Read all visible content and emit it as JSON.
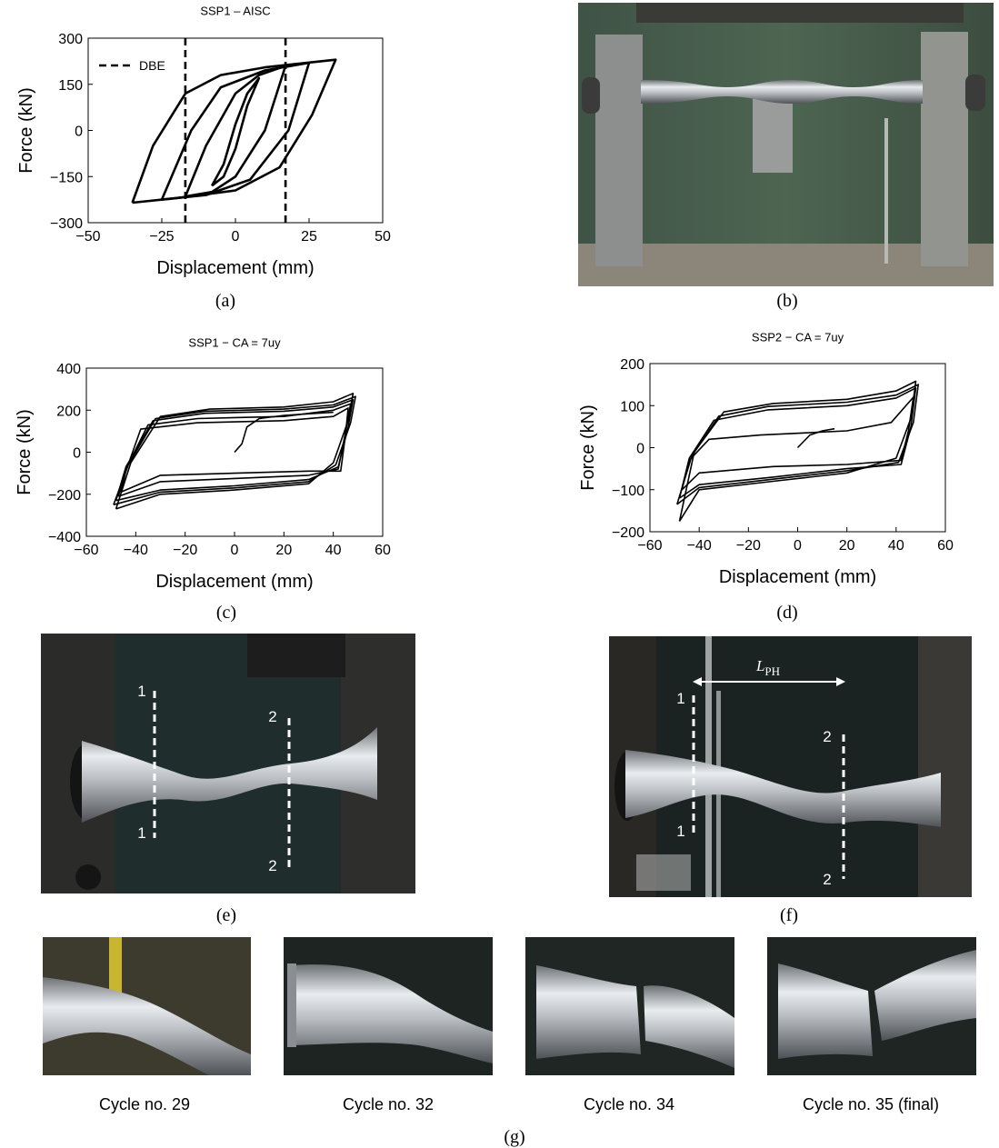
{
  "chart_data": [
    {
      "type": "line",
      "title": "SSP1 – AISC",
      "x_label": "Displacement (mm)",
      "y_label": "Force (kN)",
      "xlim": [
        -50,
        50
      ],
      "xticks": [
        {
          "value": -50,
          "label": "−50"
        },
        {
          "value": -25,
          "label": "−25"
        },
        0,
        25,
        50
      ],
      "ylim": [
        -300,
        300
      ],
      "yticks": [
        {
          "value": -300,
          "label": "−300"
        },
        {
          "value": -150,
          "label": "−150"
        },
        0,
        150,
        300
      ],
      "legend": "upper left",
      "series": [
        {
          "color": "#000000",
          "x": [
            -8,
            -4,
            0,
            4,
            8,
            4,
            0,
            -4,
            -8
          ],
          "values": [
            -180,
            -110,
            20,
            120,
            170,
            80,
            -60,
            -150,
            -180
          ]
        },
        {
          "color": "#000000",
          "x": [
            -17,
            -10,
            0,
            8,
            17,
            10,
            0,
            -8,
            -17
          ],
          "values": [
            -215,
            -50,
            120,
            180,
            210,
            0,
            -150,
            -200,
            -215
          ]
        },
        {
          "color": "#000000",
          "x": [
            -25,
            -15,
            -5,
            10,
            25,
            18,
            5,
            -10,
            -25
          ],
          "values": [
            -225,
            0,
            140,
            195,
            220,
            0,
            -160,
            -210,
            -225
          ]
        },
        {
          "color": "#000000",
          "x": [
            -35,
            -28,
            -17,
            -5,
            10,
            34,
            26,
            15,
            0,
            -20,
            -35
          ],
          "values": [
            -235,
            -50,
            120,
            180,
            205,
            230,
            50,
            -120,
            -195,
            -220,
            -235
          ]
        },
        {
          "name": "DBE",
          "color": "#000000",
          "style": "dashed",
          "x": [
            -17,
            -17,
            null,
            17,
            17
          ],
          "values": [
            -300,
            300,
            null,
            -300,
            300
          ]
        }
      ]
    },
    {
      "type": "line",
      "title": "SSP1 − CA = 7uy",
      "x_label": "Displacement (mm)",
      "y_label": "Force (kN)",
      "xlim": [
        -60,
        60
      ],
      "xticks": [
        {
          "value": -60,
          "label": "−60"
        },
        {
          "value": -40,
          "label": "−40"
        },
        {
          "value": -20,
          "label": "−20"
        },
        0,
        20,
        40,
        60
      ],
      "ylim": [
        -400,
        400
      ],
      "yticks": [
        {
          "value": -400,
          "label": "−400"
        },
        {
          "value": -200,
          "label": "−200"
        },
        0,
        200,
        400
      ],
      "series": [
        {
          "color": "#000000",
          "x": [
            -48,
            -42,
            -30,
            -10,
            20,
            40,
            48,
            46,
            40,
            30,
            0,
            -30,
            -48
          ],
          "values": [
            -270,
            -50,
            170,
            205,
            215,
            240,
            280,
            150,
            -50,
            -150,
            -180,
            -200,
            -270
          ]
        },
        {
          "color": "#000000",
          "x": [
            -49,
            -43,
            -32,
            -12,
            20,
            40,
            49,
            47,
            41,
            30,
            0,
            -30,
            -49
          ],
          "values": [
            -250,
            -60,
            160,
            195,
            205,
            225,
            265,
            140,
            -60,
            -140,
            -170,
            -190,
            -250
          ]
        },
        {
          "color": "#000000",
          "x": [
            -48,
            -44,
            -33,
            -12,
            20,
            40,
            48,
            46,
            42,
            30,
            0,
            -30,
            -48
          ],
          "values": [
            -230,
            -70,
            150,
            185,
            195,
            215,
            250,
            120,
            -70,
            -130,
            -160,
            -180,
            -230
          ]
        },
        {
          "color": "#000000",
          "x": [
            -47,
            -44,
            -35,
            -15,
            20,
            40,
            47,
            45,
            42,
            30,
            0,
            -30,
            -47
          ],
          "values": [
            -210,
            -80,
            130,
            160,
            170,
            200,
            230,
            100,
            -80,
            -110,
            -125,
            -140,
            -210
          ]
        },
        {
          "color": "#000000",
          "x": [
            -46,
            -44,
            -38,
            -15,
            20,
            40,
            46,
            45,
            43,
            30,
            0,
            -30,
            -46
          ],
          "values": [
            -190,
            -90,
            110,
            140,
            150,
            170,
            210,
            90,
            -90,
            -90,
            -100,
            -110,
            -190
          ]
        },
        {
          "color": "#000000",
          "x": [
            0,
            3,
            5,
            10,
            20,
            40
          ],
          "values": [
            0,
            40,
            120,
            160,
            175,
            190
          ]
        }
      ]
    },
    {
      "type": "line",
      "title": "SSP2 − CA = 7uy",
      "x_label": "Displacement (mm)",
      "y_label": "Force (kN)",
      "xlim": [
        -60,
        60
      ],
      "xticks": [
        {
          "value": -60,
          "label": "−60"
        },
        {
          "value": -40,
          "label": "−40"
        },
        {
          "value": -20,
          "label": "−20"
        },
        0,
        20,
        40,
        60
      ],
      "ylim": [
        -200,
        200
      ],
      "yticks": [
        {
          "value": -200,
          "label": "−200"
        },
        {
          "value": -100,
          "label": "−100"
        },
        0,
        100,
        200
      ],
      "series": [
        {
          "color": "#000000",
          "x": [
            -48,
            -42,
            -30,
            -10,
            20,
            40,
            48,
            46,
            40,
            20,
            -10,
            -40,
            -48
          ],
          "values": [
            -175,
            -10,
            85,
            105,
            115,
            135,
            158,
            70,
            -25,
            -60,
            -80,
            -100,
            -175
          ]
        },
        {
          "color": "#000000",
          "x": [
            -49,
            -43,
            -32,
            -12,
            20,
            40,
            49,
            47,
            41,
            20,
            -10,
            -40,
            -49
          ],
          "values": [
            -135,
            -20,
            75,
            98,
            108,
            125,
            150,
            60,
            -35,
            -55,
            -75,
            -95,
            -135
          ]
        },
        {
          "color": "#000000",
          "x": [
            -48,
            -44,
            -34,
            -12,
            20,
            40,
            48,
            46,
            42,
            20,
            -10,
            -40,
            -48
          ],
          "values": [
            -120,
            -25,
            65,
            90,
            100,
            118,
            142,
            50,
            -40,
            -50,
            -70,
            -88,
            -120
          ]
        },
        {
          "color": "#000000",
          "x": [
            -47,
            -44,
            -36,
            -15,
            20,
            38,
            47,
            45,
            42,
            20,
            -10,
            -40,
            -47
          ],
          "values": [
            -100,
            -30,
            20,
            30,
            40,
            60,
            120,
            40,
            -30,
            -40,
            -45,
            -60,
            -100
          ]
        },
        {
          "color": "#000000",
          "x": [
            0,
            5,
            10,
            15
          ],
          "values": [
            0,
            30,
            40,
            45
          ]
        }
      ]
    }
  ],
  "figure": {
    "panel_labels": [
      "(a)",
      "(b)",
      "(c)",
      "(d)",
      "(e)",
      "(f)",
      "(g)"
    ],
    "section_e": [
      "1",
      "1",
      "2",
      "2"
    ],
    "section_f": [
      "1",
      "1",
      "2",
      "2"
    ],
    "length_symbol": "L",
    "length_subscript": "PH",
    "captions": [
      "Cycle no. 29",
      "Cycle no. 32",
      "Cycle no. 34",
      "Cycle no. 35 (final)"
    ]
  }
}
